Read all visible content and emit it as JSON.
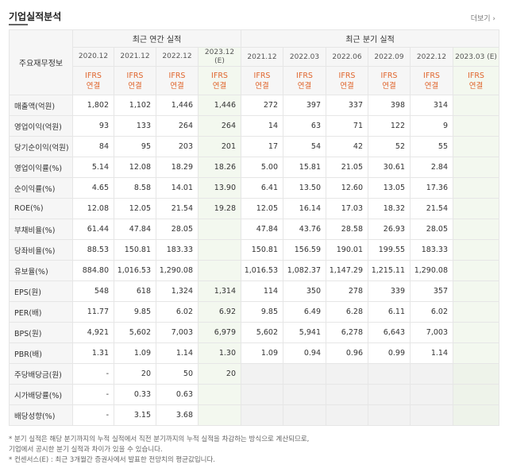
{
  "header": {
    "title": "기업실적분석",
    "more_label": "더보기 ›"
  },
  "table": {
    "row_header_label": "주요재무정보",
    "annual_group_label": "최근 연간 실적",
    "quarter_group_label": "최근 분기 실적",
    "annual_dates": [
      "2020.12",
      "2021.12",
      "2022.12",
      "2023.12\n(E)"
    ],
    "quarter_dates": [
      "2021.12",
      "2022.03",
      "2022.06",
      "2022.09",
      "2022.12",
      "2023.03 (E)"
    ],
    "ifrs_label": "IFRS\n연결",
    "rows": [
      {
        "label": "매출액(억원)",
        "annual": [
          "1,802",
          "1,102",
          "1,446",
          "1,446"
        ],
        "quarter": [
          "272",
          "397",
          "337",
          "398",
          "314",
          ""
        ]
      },
      {
        "label": "영업이익(억원)",
        "annual": [
          "93",
          "133",
          "264",
          "264"
        ],
        "quarter": [
          "14",
          "63",
          "71",
          "122",
          "9",
          ""
        ]
      },
      {
        "label": "당기순이익(억원)",
        "annual": [
          "84",
          "95",
          "203",
          "201"
        ],
        "quarter": [
          "17",
          "54",
          "42",
          "52",
          "55",
          ""
        ]
      },
      {
        "label": "영업이익률(%)",
        "annual": [
          "5.14",
          "12.08",
          "18.29",
          "18.26"
        ],
        "quarter": [
          "5.00",
          "15.81",
          "21.05",
          "30.61",
          "2.84",
          ""
        ]
      },
      {
        "label": "순이익률(%)",
        "annual": [
          "4.65",
          "8.58",
          "14.01",
          "13.90"
        ],
        "quarter": [
          "6.41",
          "13.50",
          "12.60",
          "13.05",
          "17.36",
          ""
        ]
      },
      {
        "label": "ROE(%)",
        "annual": [
          "12.08",
          "12.05",
          "21.54",
          "19.28"
        ],
        "quarter": [
          "12.05",
          "16.14",
          "17.03",
          "18.32",
          "21.54",
          ""
        ]
      },
      {
        "label": "부채비율(%)",
        "annual": [
          "61.44",
          "47.84",
          "28.05",
          ""
        ],
        "quarter": [
          "47.84",
          "43.76",
          "28.58",
          "26.93",
          "28.05",
          ""
        ]
      },
      {
        "label": "당좌비율(%)",
        "annual": [
          "88.53",
          "150.81",
          "183.33",
          ""
        ],
        "quarter": [
          "150.81",
          "156.59",
          "190.01",
          "199.55",
          "183.33",
          ""
        ]
      },
      {
        "label": "유보율(%)",
        "annual": [
          "884.80",
          "1,016.53",
          "1,290.08",
          ""
        ],
        "quarter": [
          "1,016.53",
          "1,082.37",
          "1,147.29",
          "1,215.11",
          "1,290.08",
          ""
        ]
      },
      {
        "label": "EPS(원)",
        "annual": [
          "548",
          "618",
          "1,324",
          "1,314"
        ],
        "quarter": [
          "114",
          "350",
          "278",
          "339",
          "357",
          ""
        ]
      },
      {
        "label": "PER(배)",
        "annual": [
          "11.77",
          "9.85",
          "6.02",
          "6.92"
        ],
        "quarter": [
          "9.85",
          "6.49",
          "6.28",
          "6.11",
          "6.02",
          ""
        ]
      },
      {
        "label": "BPS(원)",
        "annual": [
          "4,921",
          "5,602",
          "7,003",
          "6,979"
        ],
        "quarter": [
          "5,602",
          "5,941",
          "6,278",
          "6,643",
          "7,003",
          ""
        ]
      },
      {
        "label": "PBR(배)",
        "annual": [
          "1.31",
          "1.09",
          "1.14",
          "1.30"
        ],
        "quarter": [
          "1.09",
          "0.94",
          "0.96",
          "0.99",
          "1.14",
          ""
        ]
      },
      {
        "label": "주당배당금(원)",
        "annual": [
          "-",
          "20",
          "50",
          "20"
        ],
        "quarter": [
          "",
          "",
          "",
          "",
          "",
          ""
        ]
      },
      {
        "label": "시가배당률(%)",
        "annual": [
          "-",
          "0.33",
          "0.63",
          ""
        ],
        "quarter": [
          "",
          "",
          "",
          "",
          "",
          ""
        ]
      },
      {
        "label": "배당성향(%)",
        "annual": [
          "-",
          "3.15",
          "3.68",
          ""
        ],
        "quarter": [
          "",
          "",
          "",
          "",
          "",
          ""
        ]
      }
    ]
  },
  "notes": [
    "* 분기 실적은 해당 분기까지의 누적 실적에서 직전 분기까지의 누적 실적을 차감하는 방식으로 계산되므로,",
    "  기업에서 공시한 분기 실적과 차이가 있을 수 있습니다.",
    "* 컨센서스(E) : 최근 3개월간 증권사에서 발표한 전망치의 평균값입니다."
  ]
}
